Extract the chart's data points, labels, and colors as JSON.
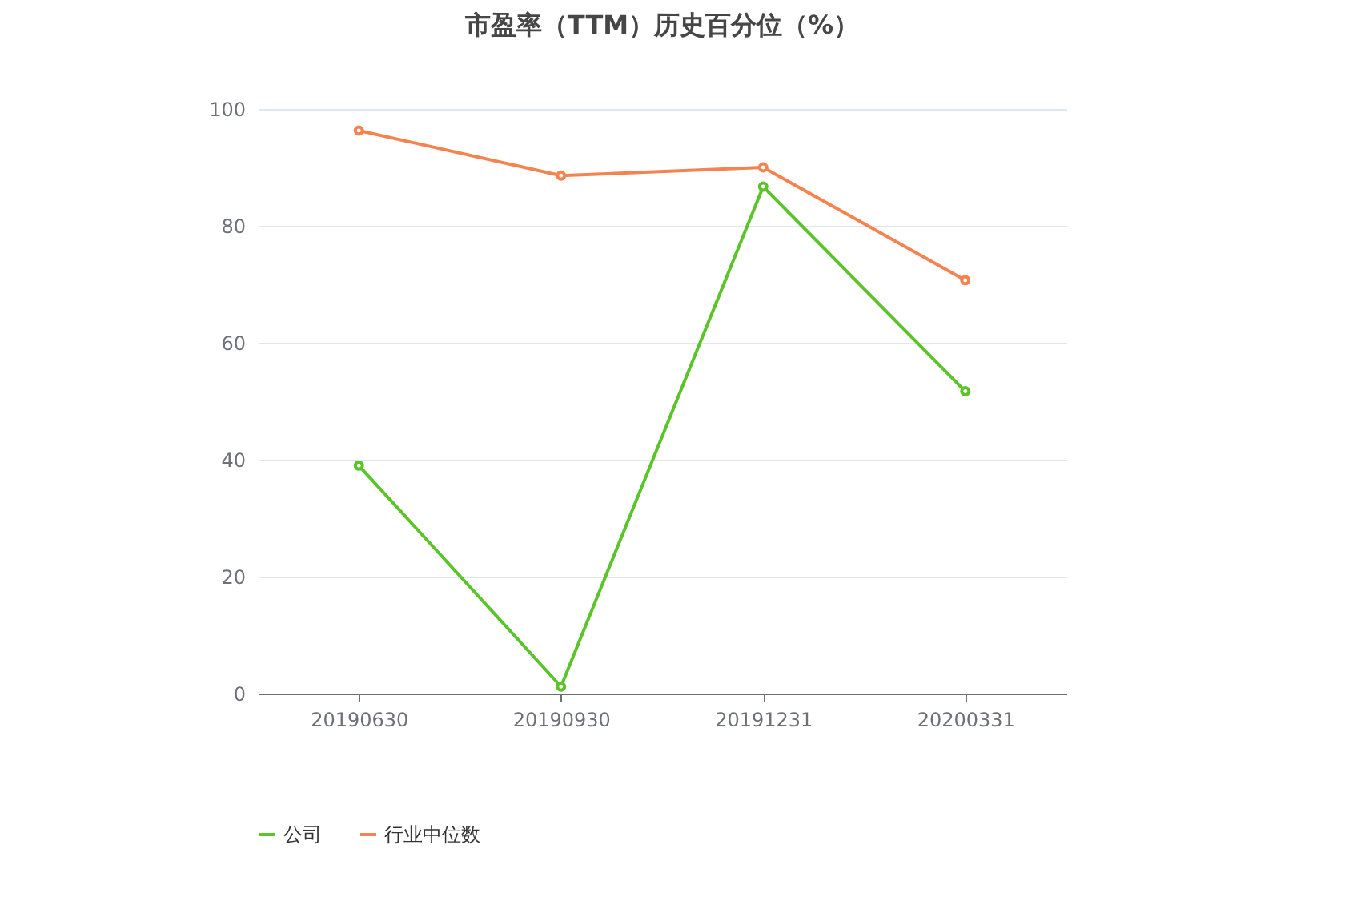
{
  "chart_data": {
    "type": "line",
    "title": "市盈率（TTM）历史百分位（%）",
    "categories": [
      "20190630",
      "20190930",
      "20191231",
      "20200331"
    ],
    "series": [
      {
        "name": "公司",
        "color": "#5ac42a",
        "values": [
          39.0,
          1.2,
          86.7,
          51.7
        ]
      },
      {
        "name": "行业中位数",
        "color": "#f5834f",
        "values": [
          96.3,
          88.6,
          90.0,
          70.7
        ]
      }
    ],
    "ylim": [
      0,
      100
    ],
    "yticks": [
      0,
      20,
      40,
      60,
      80,
      100
    ],
    "grid": "y",
    "legend": "bottom",
    "marker": "circle",
    "line_style": "solid"
  }
}
